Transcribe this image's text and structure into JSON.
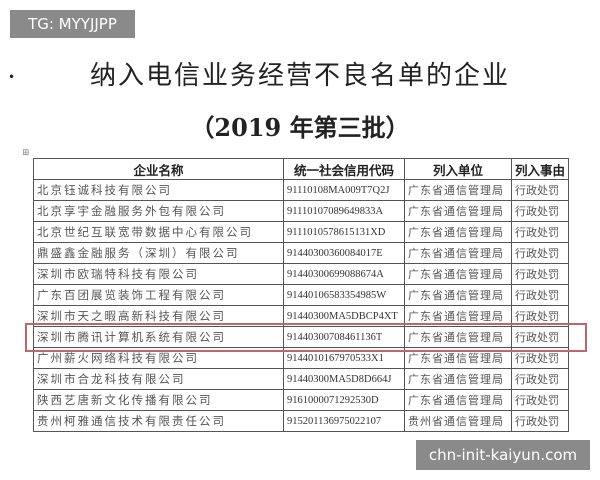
{
  "badge": "TG: MYYJJPP",
  "bullet": "•",
  "title": "纳入电信业务经营不良名单的企业",
  "subtitle": "（2019 年第三批）",
  "table": {
    "headers": [
      "企业名称",
      "统一社会信用代码",
      "列入单位",
      "列入事由"
    ],
    "rows": [
      [
        "北京钰诚科技有限公司",
        "91110108MA009T7Q2J",
        "广东省通信管理局",
        "行政处罚"
      ],
      [
        "北京享宇金融服务外包有限公司",
        "911101070896498​33A",
        "广东省通信管理局",
        "行政处罚"
      ],
      [
        "北京世纪互联宽带数据中心有限公司",
        "91110105786151​31XD",
        "广东省通信管理局",
        "行政处罚"
      ],
      [
        "鼎盛鑫金融服务（深圳）有限公司",
        "91440300360084017E",
        "广东省通信管理局",
        "行政处罚"
      ],
      [
        "深圳市欧瑞特科技有限公司",
        "91440300699088674A",
        "广东省通信管理局",
        "行政处罚"
      ],
      [
        "广东百团展览装饰工程有限公司",
        "91440106583354985W",
        "广东省通信管理局",
        "行政处罚"
      ],
      [
        "深圳市天之暇高新科技有限公司",
        "91440300MA5DBCP4XT",
        "广东省通信管理局",
        "行政处罚"
      ],
      [
        "深圳市腾讯计算机系统有限公司",
        "91440300708461136T",
        "广东省通信管理局",
        "行政处罚"
      ],
      [
        "广州薪火网络科技有限公司",
        "91440101679705​33X1",
        "广东省通信管理局",
        "行政处罚"
      ],
      [
        "深圳市合龙科技有限公司",
        "91440300MA5D8D664J",
        "广东省通信管理局",
        "行政处罚"
      ],
      [
        "陕西艺唐新文化传播有限公司",
        "91610000712925​30D",
        "广东省通信管理局",
        "行政处罚"
      ],
      [
        "贵州柯雅通信技术有限责任公司",
        "91520113697502​2107",
        "贵州省通信管理局",
        "行政处罚"
      ]
    ],
    "highlighted_row": 8
  },
  "watermark": "chn-init-kaiyun.com",
  "colors": {
    "highlight": "#c0666a",
    "badge_bg": "#8a8a8a"
  }
}
